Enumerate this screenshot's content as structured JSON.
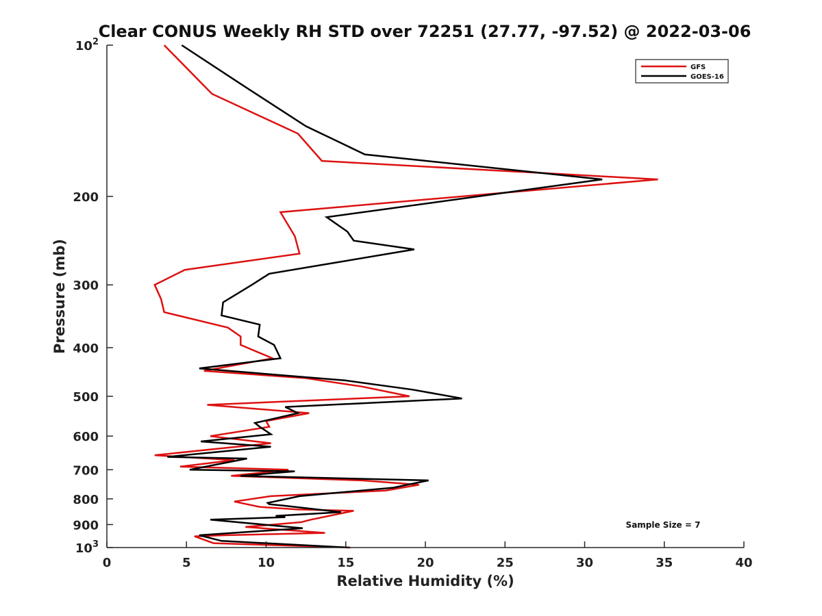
{
  "chart_data": {
    "type": "line",
    "title": "Clear CONUS Weekly RH STD over 72251 (27.77, -97.52) @ 2022-03-06",
    "xlabel": "Relative Humidity (%)",
    "ylabel": "Pressure (mb)",
    "xlim": [
      0,
      40
    ],
    "ylim": [
      100,
      1000
    ],
    "y_scale": "log",
    "y_reversed": true,
    "x_ticks": [
      "0",
      "5",
      "10",
      "15",
      "20",
      "25",
      "30",
      "35",
      "40"
    ],
    "y_ticks": [
      {
        "value": 100,
        "base": "10",
        "sup": "2"
      },
      {
        "value": 200,
        "label": "200"
      },
      {
        "value": 300,
        "label": "300"
      },
      {
        "value": 400,
        "label": "400"
      },
      {
        "value": 500,
        "label": "500"
      },
      {
        "value": 600,
        "label": "600"
      },
      {
        "value": 700,
        "label": "700"
      },
      {
        "value": 800,
        "label": "800"
      },
      {
        "value": 900,
        "label": "900"
      },
      {
        "value": 1000,
        "base": "10",
        "sup": "3"
      }
    ],
    "legend_position": "top-right",
    "grid": false,
    "annotation": "Sample Size = 7",
    "series": [
      {
        "name": "GFS",
        "color": "#dd1111",
        "points": [
          [
            3.6,
            100
          ],
          [
            6.6,
            125
          ],
          [
            12.0,
            150
          ],
          [
            13.5,
            170
          ],
          [
            34.6,
            185
          ],
          [
            10.9,
            215
          ],
          [
            11.8,
            240
          ],
          [
            12.1,
            260
          ],
          [
            4.9,
            280
          ],
          [
            3.0,
            300
          ],
          [
            3.4,
            320
          ],
          [
            3.6,
            340
          ],
          [
            7.6,
            365
          ],
          [
            8.4,
            380
          ],
          [
            8.4,
            395
          ],
          [
            10.4,
            420
          ],
          [
            6.1,
            445
          ],
          [
            12.5,
            460
          ],
          [
            16.0,
            478
          ],
          [
            19.0,
            500
          ],
          [
            6.3,
            520
          ],
          [
            12.7,
            540
          ],
          [
            10.0,
            560
          ],
          [
            10.2,
            575
          ],
          [
            6.5,
            600
          ],
          [
            10.3,
            620
          ],
          [
            3.0,
            655
          ],
          [
            8.0,
            670
          ],
          [
            4.6,
            690
          ],
          [
            11.4,
            700
          ],
          [
            7.8,
            720
          ],
          [
            16.0,
            735
          ],
          [
            19.6,
            750
          ],
          [
            17.5,
            770
          ],
          [
            10.3,
            790
          ],
          [
            8.0,
            810
          ],
          [
            9.6,
            830
          ],
          [
            12.0,
            840
          ],
          [
            15.5,
            845
          ],
          [
            12.8,
            880
          ],
          [
            12.2,
            890
          ],
          [
            8.7,
            910
          ],
          [
            13.7,
            935
          ],
          [
            7.4,
            945
          ],
          [
            5.5,
            950
          ],
          [
            6.7,
            980
          ],
          [
            15.3,
            1000
          ]
        ]
      },
      {
        "name": "GOES-16",
        "color": "#000000",
        "points": [
          [
            4.7,
            100
          ],
          [
            8.5,
            120
          ],
          [
            12.5,
            145
          ],
          [
            16.2,
            165
          ],
          [
            31.1,
            185
          ],
          [
            13.8,
            220
          ],
          [
            15.1,
            235
          ],
          [
            15.5,
            245
          ],
          [
            19.3,
            255
          ],
          [
            10.2,
            285
          ],
          [
            9.1,
            300
          ],
          [
            7.3,
            325
          ],
          [
            7.2,
            345
          ],
          [
            9.6,
            360
          ],
          [
            9.5,
            380
          ],
          [
            10.5,
            395
          ],
          [
            10.9,
            420
          ],
          [
            5.8,
            440
          ],
          [
            15.0,
            465
          ],
          [
            19.2,
            485
          ],
          [
            22.3,
            505
          ],
          [
            11.2,
            525
          ],
          [
            12.0,
            540
          ],
          [
            9.3,
            565
          ],
          [
            9.6,
            575
          ],
          [
            10.3,
            595
          ],
          [
            5.9,
            615
          ],
          [
            10.3,
            630
          ],
          [
            3.8,
            660
          ],
          [
            8.8,
            665
          ],
          [
            5.2,
            700
          ],
          [
            11.8,
            705
          ],
          [
            8.4,
            720
          ],
          [
            20.2,
            735
          ],
          [
            18.0,
            760
          ],
          [
            12.1,
            790
          ],
          [
            10.1,
            815
          ],
          [
            10.2,
            820
          ],
          [
            11.1,
            825
          ],
          [
            14.7,
            850
          ],
          [
            10.6,
            865
          ],
          [
            11.2,
            870
          ],
          [
            6.5,
            880
          ],
          [
            12.3,
            915
          ],
          [
            5.8,
            945
          ],
          [
            7.2,
            970
          ],
          [
            15.2,
            1000
          ]
        ]
      }
    ]
  }
}
